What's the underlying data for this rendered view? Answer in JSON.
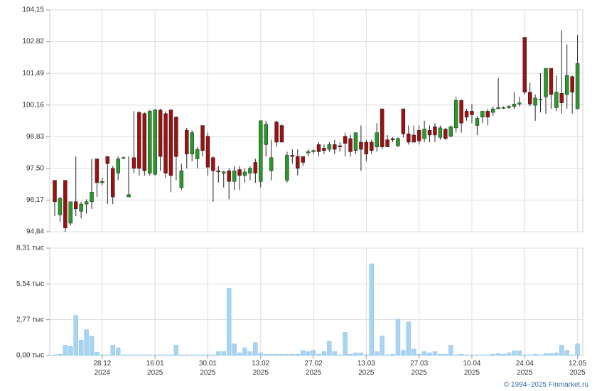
{
  "chart_data": [
    {
      "type": "candlestick",
      "open": [
        97.0,
        95.55,
        97.0,
        95.2,
        96.1,
        95.7,
        96.0,
        96.1,
        97.9,
        96.9,
        98.0,
        97.5,
        97.3,
        97.95,
        96.3,
        97.95,
        99.85,
        99.8,
        97.3,
        97.25,
        99.95,
        99.8,
        99.95,
        99.65,
        96.7,
        99.1,
        98.1,
        97.9,
        99.3,
        98.85,
        97.95,
        97.4,
        97.3,
        97.4,
        96.95,
        97.45,
        97.2,
        97.3,
        97.75,
        96.95,
        98.5,
        97.4,
        99.45,
        99.3,
        97.0,
        98.05,
        98.0,
        98.0,
        98.15,
        98.2,
        98.5,
        98.35,
        98.3,
        98.5,
        98.45,
        98.85,
        98.75,
        98.25,
        98.6,
        98.6,
        98.6,
        98.4,
        100.0,
        98.7,
        98.75,
        98.45,
        100.0,
        98.95,
        98.9,
        99.1,
        98.75,
        99.1,
        99.25,
        98.8,
        99.15,
        98.85,
        99.2,
        100.35,
        99.9,
        99.9,
        99.3,
        99.65,
        99.9,
        99.85,
        100.0,
        100.05,
        100.05,
        100.1,
        100.2,
        103.0,
        100.7,
        100.15,
        100.4,
        100.5,
        101.7,
        100.05,
        100.65,
        100.6,
        101.35,
        100.0
      ],
      "high": [
        97.0,
        96.3,
        97.0,
        96.1,
        98.0,
        96.1,
        96.2,
        97.9,
        97.9,
        97.1,
        98.0,
        97.6,
        98.0,
        98.0,
        98.0,
        99.9,
        99.9,
        99.85,
        99.95,
        100.0,
        100.0,
        99.9,
        100.0,
        99.7,
        97.7,
        99.2,
        99.1,
        98.4,
        99.3,
        99.0,
        98.0,
        97.6,
        97.4,
        97.5,
        97.6,
        97.6,
        97.5,
        97.6,
        97.9,
        99.5,
        99.5,
        98.7,
        99.5,
        99.35,
        98.2,
        98.3,
        98.3,
        98.0,
        98.3,
        98.3,
        98.6,
        98.5,
        98.6,
        98.7,
        98.6,
        99.0,
        98.9,
        99.0,
        99.3,
        98.7,
        98.7,
        99.4,
        100.0,
        98.9,
        98.8,
        98.8,
        100.0,
        99.3,
        99.3,
        99.3,
        99.5,
        99.3,
        99.4,
        99.3,
        99.2,
        99.3,
        100.5,
        100.4,
        100.0,
        100.2,
        99.7,
        99.9,
        100.0,
        100.1,
        101.3,
        100.1,
        100.15,
        100.7,
        100.5,
        103.0,
        101.1,
        100.6,
        101.5,
        101.7,
        101.7,
        101.4,
        103.3,
        102.7,
        101.4,
        103.1
      ],
      "low": [
        95.5,
        95.25,
        94.84,
        95.1,
        95.5,
        95.4,
        95.6,
        95.8,
        96.3,
        96.8,
        96.0,
        96.0,
        97.0,
        97.9,
        96.3,
        97.3,
        97.2,
        97.2,
        97.2,
        97.2,
        97.4,
        97.1,
        96.5,
        97.0,
        96.6,
        97.5,
        97.8,
        97.5,
        98.0,
        97.2,
        96.1,
        96.9,
        96.7,
        96.2,
        96.6,
        96.6,
        96.9,
        97.0,
        96.9,
        96.7,
        98.0,
        97.0,
        98.4,
        98.6,
        96.9,
        97.7,
        97.2,
        97.6,
        98.0,
        98.1,
        98.0,
        98.1,
        98.2,
        98.1,
        98.2,
        98.0,
        98.0,
        98.1,
        97.4,
        97.8,
        98.1,
        98.2,
        98.3,
        98.4,
        98.6,
        98.4,
        98.8,
        98.5,
        98.6,
        98.5,
        98.6,
        98.6,
        98.6,
        98.7,
        98.7,
        98.8,
        99.0,
        99.0,
        99.5,
        99.4,
        98.9,
        99.4,
        99.3,
        99.7,
        100.0,
        100.0,
        100.0,
        100.0,
        100.1,
        100.6,
        100.1,
        99.5,
        99.85,
        99.8,
        100.0,
        99.9,
        99.8,
        100.0,
        99.8,
        100.0
      ],
      "close": [
        96.1,
        96.25,
        95.0,
        96.1,
        95.8,
        96.0,
        96.1,
        96.5,
        96.9,
        96.95,
        97.7,
        96.3,
        97.9,
        97.95,
        96.4,
        97.5,
        97.5,
        97.4,
        99.9,
        99.95,
        98.0,
        97.3,
        97.2,
        98.0,
        97.4,
        98.1,
        99.0,
        98.3,
        98.25,
        97.55,
        97.4,
        97.35,
        97.35,
        96.95,
        97.4,
        97.2,
        97.35,
        97.5,
        97.3,
        99.5,
        99.35,
        97.95,
        98.6,
        98.6,
        98.05,
        98.0,
        97.5,
        97.75,
        98.2,
        98.25,
        98.2,
        98.25,
        98.5,
        98.3,
        98.4,
        98.55,
        98.2,
        99.0,
        98.3,
        98.1,
        98.25,
        99.0,
        98.4,
        98.4,
        98.7,
        98.75,
        98.95,
        98.6,
        98.6,
        98.65,
        99.15,
        98.9,
        98.9,
        99.2,
        98.75,
        99.25,
        100.35,
        99.4,
        99.65,
        99.75,
        99.6,
        99.9,
        99.65,
        100.0,
        100.05,
        100.05,
        100.1,
        100.2,
        100.25,
        100.7,
        100.2,
        100.45,
        100.4,
        101.7,
        100.6,
        100.7,
        100.25,
        101.4,
        100.7,
        101.9
      ],
      "up_color": "#2a9a2a",
      "down_color": "#9a1212",
      "ylim": [
        94.84,
        104.15
      ],
      "yticks": [
        {
          "value": 94.84,
          "label": "94,84"
        },
        {
          "value": 96.17,
          "label": "96,17"
        },
        {
          "value": 97.5,
          "label": "97,50"
        },
        {
          "value": 98.83,
          "label": "98,83"
        },
        {
          "value": 100.16,
          "label": "100,16"
        },
        {
          "value": 101.49,
          "label": "101,49"
        },
        {
          "value": 102.82,
          "label": "102,82"
        },
        {
          "value": 104.15,
          "label": "104,15"
        }
      ],
      "grid": true
    },
    {
      "type": "bar",
      "categories": [
        null,
        null,
        null,
        null,
        null,
        null,
        null,
        null,
        null,
        "28.12\n2024",
        null,
        null,
        null,
        null,
        null,
        null,
        null,
        null,
        null,
        "16.01\n2025",
        null,
        null,
        null,
        null,
        null,
        null,
        null,
        null,
        null,
        "30.01\n2025",
        null,
        null,
        null,
        null,
        null,
        null,
        null,
        null,
        null,
        "13.02\n2025",
        null,
        null,
        null,
        null,
        null,
        null,
        null,
        null,
        null,
        "27.02\n2025",
        null,
        null,
        null,
        null,
        null,
        null,
        null,
        null,
        null,
        "13.03\n2025",
        null,
        null,
        null,
        null,
        null,
        null,
        null,
        null,
        null,
        "27.03\n2025",
        null,
        null,
        null,
        null,
        null,
        null,
        null,
        null,
        null,
        "10.04\n2025",
        null,
        null,
        null,
        null,
        null,
        null,
        null,
        null,
        null,
        "24.04\n2025",
        null,
        null,
        null,
        null,
        null,
        null,
        null,
        null,
        null,
        "12.05\n2025"
      ],
      "values": [
        50,
        100,
        800,
        700,
        3100,
        1200,
        2000,
        1500,
        250,
        50,
        50,
        800,
        600,
        50,
        50,
        50,
        50,
        50,
        50,
        50,
        50,
        50,
        50,
        800,
        50,
        50,
        50,
        50,
        50,
        50,
        50,
        300,
        300,
        5200,
        900,
        200,
        600,
        300,
        1000,
        200,
        100,
        100,
        100,
        100,
        100,
        100,
        100,
        400,
        300,
        400,
        100,
        300,
        1100,
        300,
        50,
        1800,
        100,
        200,
        200,
        50,
        7100,
        300,
        1500,
        50,
        100,
        2800,
        400,
        2600,
        500,
        100,
        300,
        200,
        300,
        100,
        100,
        800,
        50,
        100,
        50,
        50,
        50,
        50,
        50,
        100,
        150,
        100,
        200,
        350,
        350,
        50,
        50,
        100,
        50,
        150,
        150,
        200,
        800,
        400,
        50,
        900
      ],
      "color": "#a8d4f2",
      "ylim": [
        0,
        8310
      ],
      "yticks": [
        {
          "value": 0,
          "label": "0,00 тыс"
        },
        {
          "value": 2770,
          "label": "2,77 тыс"
        },
        {
          "value": 5540,
          "label": "5,54 тыс"
        },
        {
          "value": 8310,
          "label": "8,31 тыс"
        }
      ],
      "grid": true
    }
  ],
  "footer": "© 1994–2025 Finmarket.ru"
}
